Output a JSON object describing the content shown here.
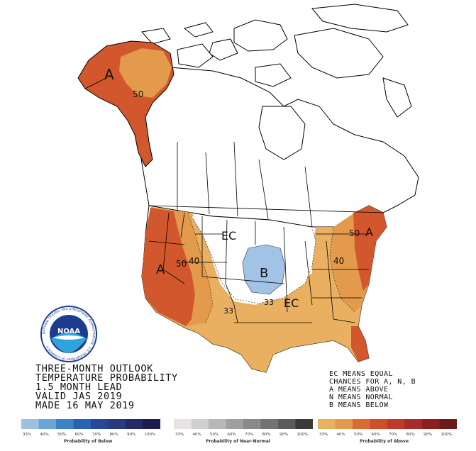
{
  "colors": {
    "above": [
      "#e8b060",
      "#e39a4c",
      "#dc6a33",
      "#cf4f2a",
      "#c0392b",
      "#a82a2a",
      "#8a2020",
      "#6a1a1a"
    ],
    "below": [
      "#9dc0e3",
      "#6aa6d8",
      "#3d84c7",
      "#2863b3",
      "#26479a",
      "#283a80",
      "#252a66",
      "#1b1b4d"
    ],
    "near": [
      "#e8e2e2",
      "#cfcfcf",
      "#b8b8b8",
      "#a0a0a0",
      "#8a8a8a",
      "#727272",
      "#5a5a5a",
      "#3a3a3a"
    ],
    "b_region": "#a3c3e6"
  },
  "map_labels": {
    "alaska_a": "A",
    "alaska_50": "50",
    "west_a": "A",
    "west_50": "50",
    "west_40": "40",
    "ec_north": "EC",
    "ec_south": "EC",
    "b_label": "B",
    "b_33": "33",
    "s_33": "33",
    "ne_50": "50",
    "ne_a": "A",
    "e_40": "40"
  },
  "title": {
    "line1": "THREE-MONTH OUTLOOK",
    "line2": "TEMPERATURE PROBABILITY",
    "line3": "1.5 MONTH LEAD",
    "line4": "VALID JAS 2019",
    "line5": "MADE 16 MAY 2019"
  },
  "legend_note": {
    "line1": "EC MEANS EQUAL",
    "line2": "CHANCES FOR A, N, B",
    "line3": "A MEANS ABOVE",
    "line4": "N MEANS NORMAL",
    "line5": "B MEANS BELOW"
  },
  "legend": {
    "below_title": "Probability of Below",
    "near_title": "Probability of Near-Normal",
    "above_title": "Probability of Above",
    "ticks": [
      "33%",
      "40%",
      "50%",
      "60%",
      "70%",
      "80%",
      "90%",
      "100%"
    ]
  },
  "logo": {
    "word": "NOAA",
    "ring_text": "NATIONAL OCEANIC AND ATMOSPHERIC ADMINISTRATION · U.S. DEPARTMENT OF COMMERCE"
  }
}
